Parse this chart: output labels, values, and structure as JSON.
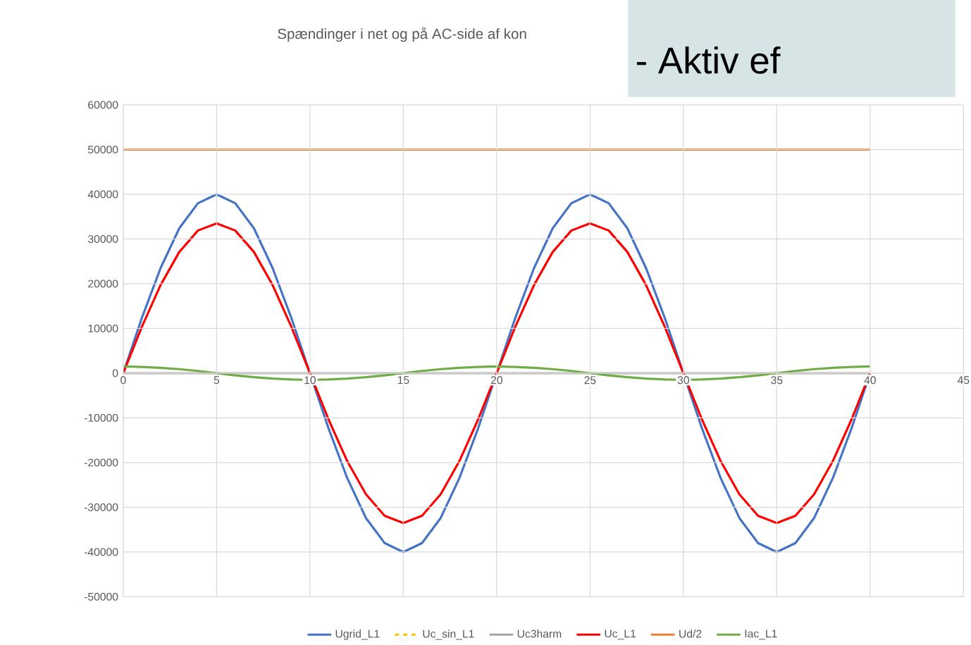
{
  "chart_data": {
    "type": "line",
    "title": "Spændinger i net og på AC-side af kon",
    "annotations": [
      "- Aktiv ef"
    ],
    "x": [
      0,
      1,
      2,
      3,
      4,
      5,
      6,
      7,
      8,
      9,
      10,
      11,
      12,
      13,
      14,
      15,
      16,
      17,
      18,
      19,
      20,
      21,
      22,
      23,
      24,
      25,
      26,
      27,
      28,
      29,
      30,
      31,
      32,
      33,
      34,
      35,
      36,
      37,
      38,
      39,
      40
    ],
    "series": [
      {
        "name": "Ugrid_L1",
        "color": "#4472c4",
        "values": [
          0,
          12400,
          23500,
          32400,
          38000,
          40000,
          38000,
          32400,
          23500,
          12400,
          0,
          -12400,
          -23500,
          -32400,
          -38000,
          -40000,
          -38000,
          -32400,
          -23500,
          -12400,
          0,
          12400,
          23500,
          32400,
          38000,
          40000,
          38000,
          32400,
          23500,
          12400,
          0,
          -12400,
          -23500,
          -32400,
          -38000,
          -40000,
          -38000,
          -32400,
          -23500,
          -12400,
          0
        ]
      },
      {
        "name": "Uc_sin_L1",
        "color": "#ffc000",
        "line_style": "dashed",
        "values": [
          null,
          null,
          null,
          null,
          null,
          null,
          null,
          null,
          null,
          null,
          null,
          null,
          null,
          null,
          null,
          null,
          null,
          null,
          null,
          null,
          null,
          null,
          null,
          null,
          null,
          null,
          null,
          null,
          null,
          null,
          null,
          null,
          null,
          null,
          null,
          null,
          null,
          null,
          null,
          null,
          null
        ]
      },
      {
        "name": "Uc3harm",
        "color": "#a5a5a5",
        "values": [
          0,
          0,
          0,
          0,
          0,
          0,
          0,
          0,
          0,
          0,
          0,
          0,
          0,
          0,
          0,
          0,
          0,
          0,
          0,
          0,
          0,
          0,
          0,
          0,
          0,
          0,
          0,
          0,
          0,
          0,
          0,
          0,
          0,
          0,
          0,
          0,
          0,
          0,
          0,
          0,
          0
        ]
      },
      {
        "name": "Uc_L1",
        "color": "#ff0000",
        "values": [
          0,
          10400,
          19700,
          27100,
          31900,
          33500,
          31900,
          27100,
          19700,
          10400,
          0,
          -10400,
          -19700,
          -27100,
          -31900,
          -33500,
          -31900,
          -27100,
          -19700,
          -10400,
          0,
          10400,
          19700,
          27100,
          31900,
          33500,
          31900,
          27100,
          19700,
          10400,
          0,
          -10400,
          -19700,
          -27100,
          -31900,
          -33500,
          -31900,
          -27100,
          -19700,
          -10400,
          0
        ]
      },
      {
        "name": "Ud/2",
        "color": "#ed7d31",
        "values": [
          50000,
          50000,
          50000,
          50000,
          50000,
          50000,
          50000,
          50000,
          50000,
          50000,
          50000,
          50000,
          50000,
          50000,
          50000,
          50000,
          50000,
          50000,
          50000,
          50000,
          50000,
          50000,
          50000,
          50000,
          50000,
          50000,
          50000,
          50000,
          50000,
          50000,
          50000,
          50000,
          50000,
          50000,
          50000,
          50000,
          50000,
          50000,
          50000,
          50000,
          50000
        ]
      },
      {
        "name": "Iac_L1",
        "color": "#70ad47",
        "values": [
          1500,
          1400,
          1200,
          900,
          500,
          0,
          -500,
          -900,
          -1200,
          -1400,
          -1500,
          -1400,
          -1200,
          -900,
          -500,
          0,
          500,
          900,
          1200,
          1400,
          1500,
          1400,
          1200,
          900,
          500,
          0,
          -500,
          -900,
          -1200,
          -1400,
          -1500,
          -1400,
          -1200,
          -900,
          -500,
          0,
          500,
          900,
          1200,
          1400,
          1500
        ]
      }
    ],
    "xlim": [
      0,
      45
    ],
    "xticks": [
      0,
      5,
      10,
      15,
      20,
      25,
      30,
      35,
      40,
      45
    ],
    "ylim": [
      -50000,
      60000
    ],
    "yticks": [
      -50000,
      -40000,
      -30000,
      -20000,
      -10000,
      0,
      10000,
      20000,
      30000,
      40000,
      50000,
      60000
    ],
    "grid": true,
    "legend": "bottom",
    "marker": "none",
    "line_style": "solid"
  }
}
